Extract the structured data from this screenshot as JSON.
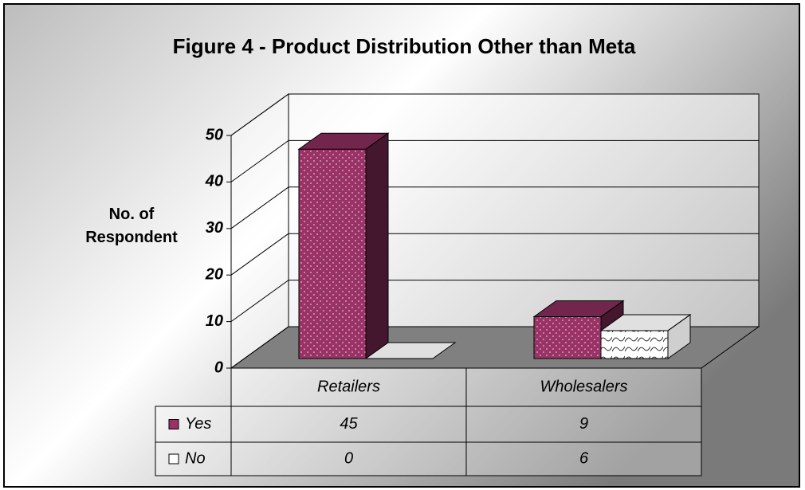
{
  "chart_data": {
    "type": "bar3d",
    "title": "Figure 4 - Product Distribution Other than Meta",
    "y_label": "No. of Respondent",
    "categories": [
      "Retailers",
      "Wholesalers"
    ],
    "series": [
      {
        "name": "Yes",
        "color": "#993366",
        "values": [
          45,
          9
        ]
      },
      {
        "name": "No",
        "color": "#ffffff",
        "values": [
          0,
          6
        ]
      }
    ],
    "ylim": [
      0,
      50
    ],
    "yticks": [
      0,
      10,
      20,
      30,
      40,
      50
    ],
    "grid": true,
    "data_table": true
  }
}
